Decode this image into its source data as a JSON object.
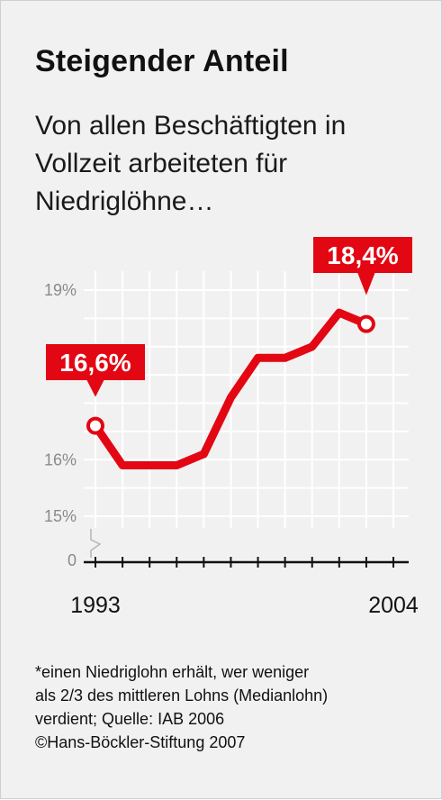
{
  "title": "Steigender Anteil",
  "subtitle_lines": [
    "Von allen Beschäftigten in",
    "Vollzeit arbeiteten für",
    "Niedriglöhne…"
  ],
  "footnote_lines": [
    "*einen Niedriglohn erhält, wer weniger",
    "als 2/3 des mittleren Lohns (Medianlohn)",
    "verdient; Quelle: IAB 2006",
    "©Hans-Böckler-Stiftung 2007"
  ],
  "colors": {
    "line": "#e30613",
    "grid": "#ffffff",
    "background": "#f1f1f1",
    "axis": "#111111",
    "tick_label": "#8a8a8a"
  },
  "chart_data": {
    "type": "line",
    "x": [
      1993,
      1994,
      1995,
      1996,
      1997,
      1998,
      1999,
      2000,
      2001,
      2002,
      2003,
      2004
    ],
    "series": [
      {
        "values": [
          16.6,
          15.9,
          15.9,
          15.9,
          16.1,
          17.1,
          17.8,
          17.8,
          18.0,
          18.6,
          18.4,
          null
        ]
      }
    ],
    "x_tick_labels": [
      "1993",
      "2004"
    ],
    "y_tick_labels": [
      "19%",
      "16%",
      "15%",
      "0"
    ],
    "y_ticks": [
      19,
      16,
      15,
      0
    ],
    "ylim": [
      15,
      19
    ],
    "axis_break": true,
    "grid": true,
    "annotations": [
      {
        "text": "16,6%",
        "x": 1993,
        "y": 16.6
      },
      {
        "text": "18,4%",
        "x": 2003,
        "y": 18.4
      }
    ]
  }
}
